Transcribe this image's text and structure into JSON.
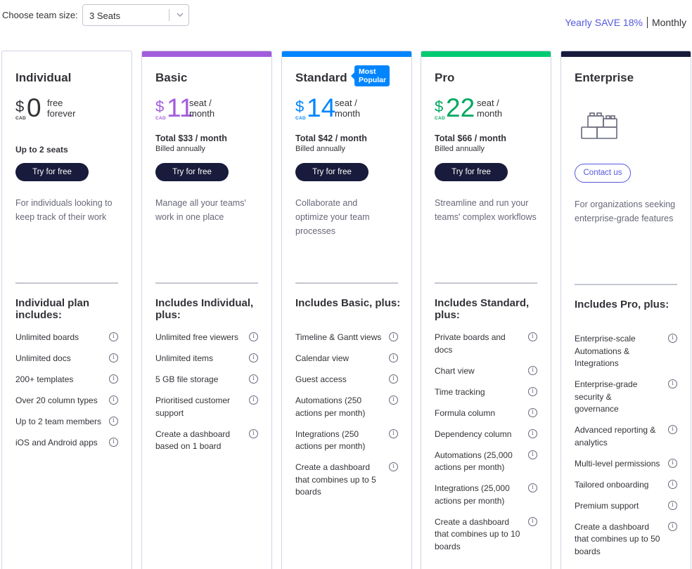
{
  "team_size": {
    "label": "Choose team size:",
    "selected": "3 Seats"
  },
  "billing": {
    "yearly": "Yearly",
    "save": "SAVE 18%",
    "monthly": "Monthly"
  },
  "colors": {
    "basic": "#a25ddc",
    "standard": "#0085ff",
    "pro": "#00ca72",
    "enterprise": "#181b3b",
    "button_dark": "#181b3b",
    "accent": "#5559df"
  },
  "plans": [
    {
      "name": "Individual",
      "currency": "$",
      "cad": "CAD",
      "amount": "0",
      "per_line1": "free",
      "per_line2": "forever",
      "seats_note": "Up to 2 seats",
      "cta": "Try for free",
      "description": "For individuals looking to keep track of their work",
      "includes_title": "Individual plan includes:",
      "features": [
        "Unlimited boards",
        "Unlimited docs",
        "200+ templates",
        "Over 20 column types",
        "Up to 2 team members",
        "iOS and Android apps"
      ]
    },
    {
      "name": "Basic",
      "currency": "$",
      "cad": "CAD",
      "amount": "11",
      "per_line1": "seat /",
      "per_line2": "month",
      "total": "Total $33 / month",
      "billed": "Billed annually",
      "cta": "Try for free",
      "description": "Manage all your teams' work in one place",
      "includes_title": "Includes Individual, plus:",
      "features": [
        "Unlimited free viewers",
        "Unlimited items",
        "5 GB file storage",
        "Prioritised customer support",
        "Create a dashboard based on 1 board"
      ]
    },
    {
      "name": "Standard",
      "badge": "Most Popular",
      "currency": "$",
      "cad": "CAD",
      "amount": "14",
      "per_line1": "seat /",
      "per_line2": "month",
      "total": "Total $42 / month",
      "billed": "Billed annually",
      "cta": "Try for free",
      "description": "Collaborate and optimize your team processes",
      "includes_title": "Includes Basic, plus:",
      "features": [
        "Timeline & Gantt views",
        "Calendar view",
        "Guest access",
        "Automations (250 actions per month)",
        "Integrations (250 actions per month)",
        "Create a dashboard that combines up to 5 boards"
      ]
    },
    {
      "name": "Pro",
      "currency": "$",
      "cad": "CAD",
      "amount": "22",
      "per_line1": "seat /",
      "per_line2": "month",
      "total": "Total $66 / month",
      "billed": "Billed annually",
      "cta": "Try for free",
      "description": "Streamline and run your teams' complex workflows",
      "includes_title": "Includes Standard, plus:",
      "features": [
        "Private boards and docs",
        "Chart view",
        "Time tracking",
        "Formula column",
        "Dependency column",
        "Automations (25,000 actions per month)",
        "Integrations (25,000 actions per month)",
        "Create a dashboard that combines up to 10 boards"
      ]
    },
    {
      "name": "Enterprise",
      "cta": "Contact us",
      "description": "For organizations seeking enterprise-grade features",
      "includes_title": "Includes Pro, plus:",
      "features": [
        "Enterprise-scale Automations & Integrations",
        "Enterprise-grade security & governance",
        "Advanced reporting & analytics",
        "Multi-level permissions",
        "Tailored onboarding",
        "Premium support",
        "Create a dashboard that combines up to 50 boards"
      ]
    }
  ]
}
